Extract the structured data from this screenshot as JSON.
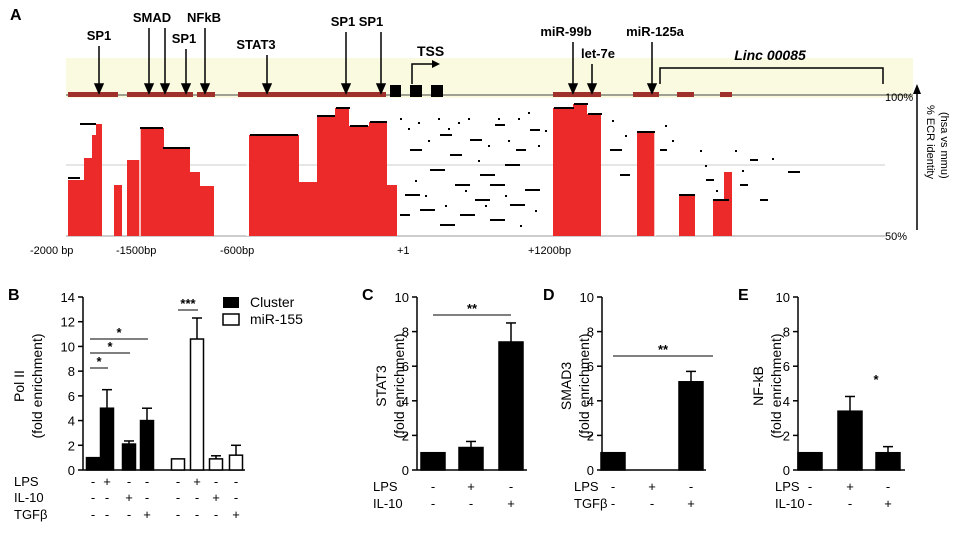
{
  "panel_a": {
    "label": "A",
    "tf_sites": [
      "SP1",
      "SMAD",
      "SP1",
      "NFkB",
      "STAT3",
      "SP1",
      "SP1"
    ],
    "tss_label": "TSS",
    "mirna_sites": [
      "miR-99b",
      "let-7e",
      "miR-125a"
    ],
    "linc_label": "Linc 00085",
    "axis_labels": [
      "-2000 bp",
      "-1500bp",
      "-600bp",
      "+1",
      "+1200bp"
    ],
    "ecr_title": "% ECR identity",
    "ecr_subtitle": "(hsa vs mmu)",
    "top_pct": "100%",
    "bottom_pct": "50%"
  },
  "chart_data": [
    {
      "panel": "B",
      "type": "bar",
      "ylabel": "Pol II",
      "ylabel2": "(fold enrichment)",
      "ylim": [
        0,
        14
      ],
      "yticks": [
        "0",
        "2",
        "4",
        "6",
        "8",
        "10",
        "12",
        "14"
      ],
      "series": [
        {
          "name": "Cluster",
          "color": "#000000",
          "values": [
            1.0,
            5.0,
            2.1,
            4.0
          ],
          "errors": [
            0,
            1.5,
            0.25,
            1.0
          ]
        },
        {
          "name": "miR-155",
          "color": "#ffffff",
          "values": [
            0.9,
            10.6,
            0.9,
            1.2
          ],
          "errors": [
            0,
            1.7,
            0.25,
            0.8
          ]
        }
      ],
      "conditions": [
        {
          "name": "LPS",
          "marks": [
            "-",
            "+",
            "-",
            "-",
            "-",
            "+",
            "-",
            "-"
          ]
        },
        {
          "name": "IL-10",
          "marks": [
            "-",
            "-",
            "+",
            "-",
            "-",
            "-",
            "+",
            "-"
          ]
        },
        {
          "name": "TGFβ",
          "marks": [
            "-",
            "-",
            "-",
            "+",
            "-",
            "-",
            "-",
            "+"
          ]
        }
      ],
      "significance": [
        "*",
        "*",
        "*",
        "***"
      ]
    },
    {
      "panel": "C",
      "type": "bar",
      "ylabel": "STAT3",
      "ylabel2": "(fold enrichment)",
      "ylim": [
        0,
        10
      ],
      "yticks": [
        "0",
        "2",
        "4",
        "6",
        "8",
        "10"
      ],
      "values": [
        1.0,
        1.3,
        7.4
      ],
      "errors": [
        0,
        0.35,
        1.1
      ],
      "conditions": [
        {
          "name": "LPS",
          "marks": [
            "-",
            "+",
            "-"
          ]
        },
        {
          "name": "IL-10",
          "marks": [
            "-",
            "-",
            "+"
          ]
        }
      ],
      "significance": [
        "**"
      ]
    },
    {
      "panel": "D",
      "type": "bar",
      "ylabel": "SMAD3",
      "ylabel2": "(fold enrichment)",
      "ylim": [
        0,
        10
      ],
      "yticks": [
        "0",
        "2",
        "4",
        "6",
        "8",
        "10"
      ],
      "values": [
        1.0,
        0.0,
        5.1
      ],
      "errors": [
        0,
        0,
        0.6
      ],
      "conditions": [
        {
          "name": "LPS",
          "marks": [
            "-",
            "+",
            "-"
          ]
        },
        {
          "name": "TGFβ",
          "marks": [
            "-",
            "-",
            "+"
          ]
        }
      ],
      "significance": [
        "**"
      ]
    },
    {
      "panel": "E",
      "type": "bar",
      "ylabel": "NF-kB",
      "ylabel2": "(fold enrichment)",
      "ylim": [
        0,
        10
      ],
      "yticks": [
        "0",
        "2",
        "4",
        "6",
        "8",
        "10"
      ],
      "values": [
        1.0,
        3.4,
        1.0
      ],
      "errors": [
        0,
        0.85,
        0.35
      ],
      "conditions": [
        {
          "name": "LPS",
          "marks": [
            "-",
            "+",
            "-"
          ]
        },
        {
          "name": "IL-10",
          "marks": [
            "-",
            "-",
            "+"
          ]
        }
      ],
      "significance": [
        "*"
      ]
    }
  ]
}
